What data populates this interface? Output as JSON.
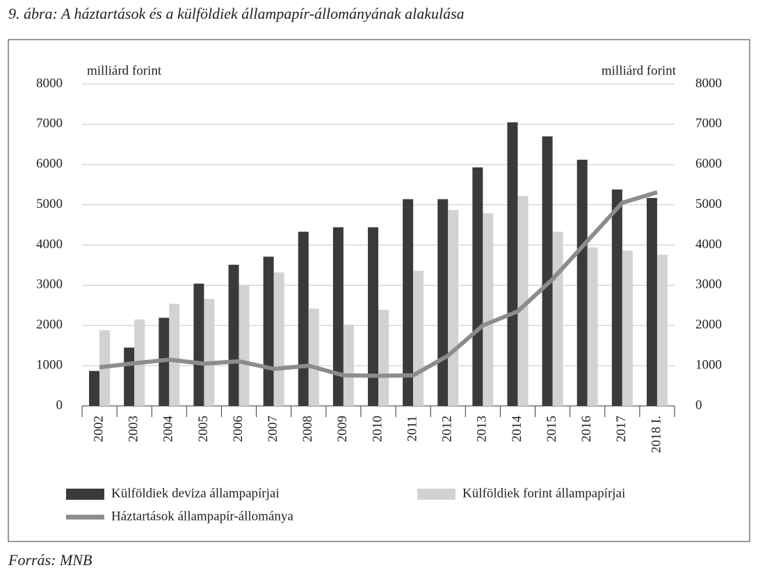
{
  "chart_data": {
    "type": "bar-line",
    "title": "9. ábra: A háztartások és a külföldiek állampapír-állományának alakulása",
    "y_label": "milliárd forint",
    "y2_label": "milliárd forint",
    "source": "Forrás: MNB",
    "categories": [
      "2002",
      "2003",
      "2004",
      "2005",
      "2006",
      "2007",
      "2008",
      "2009",
      "2010",
      "2011",
      "2012",
      "2013",
      "2014",
      "2015",
      "2016",
      "2017",
      "2018 I."
    ],
    "series": [
      {
        "name": "Külföldiek deviza állampapírjai",
        "type": "bar",
        "color": "#3a3a3a",
        "values": [
          870,
          1450,
          2190,
          3040,
          3510,
          3710,
          4330,
          4440,
          4440,
          5140,
          5140,
          5930,
          7050,
          6700,
          6120,
          5380,
          5170
        ]
      },
      {
        "name": "Külföldiek forint állampapírjai",
        "type": "bar",
        "color": "#d2d2d2",
        "values": [
          1880,
          2150,
          2540,
          2660,
          3010,
          3320,
          2420,
          2020,
          2390,
          3360,
          4870,
          4790,
          5220,
          4330,
          3940,
          3860,
          3760
        ]
      },
      {
        "name": "Háztartások állampapír-állománya",
        "type": "line",
        "color": "#8c8c8c",
        "values": [
          960,
          1060,
          1150,
          1050,
          1110,
          920,
          1000,
          760,
          750,
          760,
          1250,
          2000,
          2350,
          3150,
          4100,
          5050,
          5310
        ]
      }
    ],
    "ylim": [
      0,
      8000
    ],
    "yticks": [
      0,
      1000,
      2000,
      3000,
      4000,
      5000,
      6000,
      7000,
      8000
    ],
    "y2lim": [
      0,
      8000
    ],
    "y2ticks": [
      0,
      1000,
      2000,
      3000,
      4000,
      5000,
      6000,
      7000,
      8000
    ],
    "grid": true
  }
}
